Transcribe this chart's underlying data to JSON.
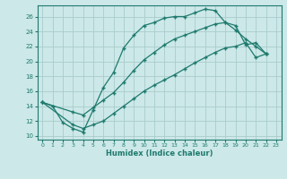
{
  "xlabel": "Humidex (Indice chaleur)",
  "bg_color": "#cce8e8",
  "line_color": "#1e7a6e",
  "grid_color": "#aacccc",
  "xlim": [
    -0.5,
    23.5
  ],
  "ylim": [
    9.5,
    27.5
  ],
  "xticks": [
    0,
    1,
    2,
    3,
    4,
    5,
    6,
    7,
    8,
    9,
    10,
    11,
    12,
    13,
    14,
    15,
    16,
    17,
    18,
    19,
    20,
    21,
    22,
    23
  ],
  "yticks": [
    10,
    12,
    14,
    16,
    18,
    20,
    22,
    24,
    26
  ],
  "curve1_x": [
    0,
    1,
    2,
    3,
    4,
    5,
    6,
    7,
    8,
    9,
    10,
    11,
    12,
    13,
    14,
    15,
    16,
    17,
    18,
    19,
    20,
    21,
    22
  ],
  "curve1_y": [
    14.5,
    14.0,
    11.8,
    11.0,
    10.5,
    13.5,
    16.5,
    18.5,
    21.8,
    23.5,
    24.8,
    25.2,
    25.8,
    26.0,
    26.0,
    26.5,
    27.0,
    26.8,
    25.2,
    24.8,
    22.2,
    22.5,
    21.0
  ],
  "curve2_x": [
    0,
    3,
    4,
    5,
    6,
    7,
    8,
    9,
    10,
    11,
    12,
    13,
    14,
    15,
    16,
    17,
    18,
    19,
    20,
    21,
    22
  ],
  "curve2_y": [
    14.5,
    13.2,
    12.8,
    13.8,
    14.8,
    15.8,
    17.2,
    18.8,
    20.2,
    21.2,
    22.2,
    23.0,
    23.5,
    24.0,
    24.5,
    25.0,
    25.2,
    24.2,
    23.0,
    22.0,
    21.0
  ],
  "curve3_x": [
    0,
    3,
    4,
    5,
    6,
    7,
    8,
    9,
    10,
    11,
    12,
    13,
    14,
    15,
    16,
    17,
    18,
    19,
    20,
    21,
    22
  ],
  "curve3_y": [
    14.5,
    11.5,
    11.0,
    11.5,
    12.0,
    13.0,
    14.0,
    15.0,
    16.0,
    16.8,
    17.5,
    18.2,
    19.0,
    19.8,
    20.5,
    21.2,
    21.8,
    22.0,
    22.5,
    20.5,
    21.0
  ]
}
